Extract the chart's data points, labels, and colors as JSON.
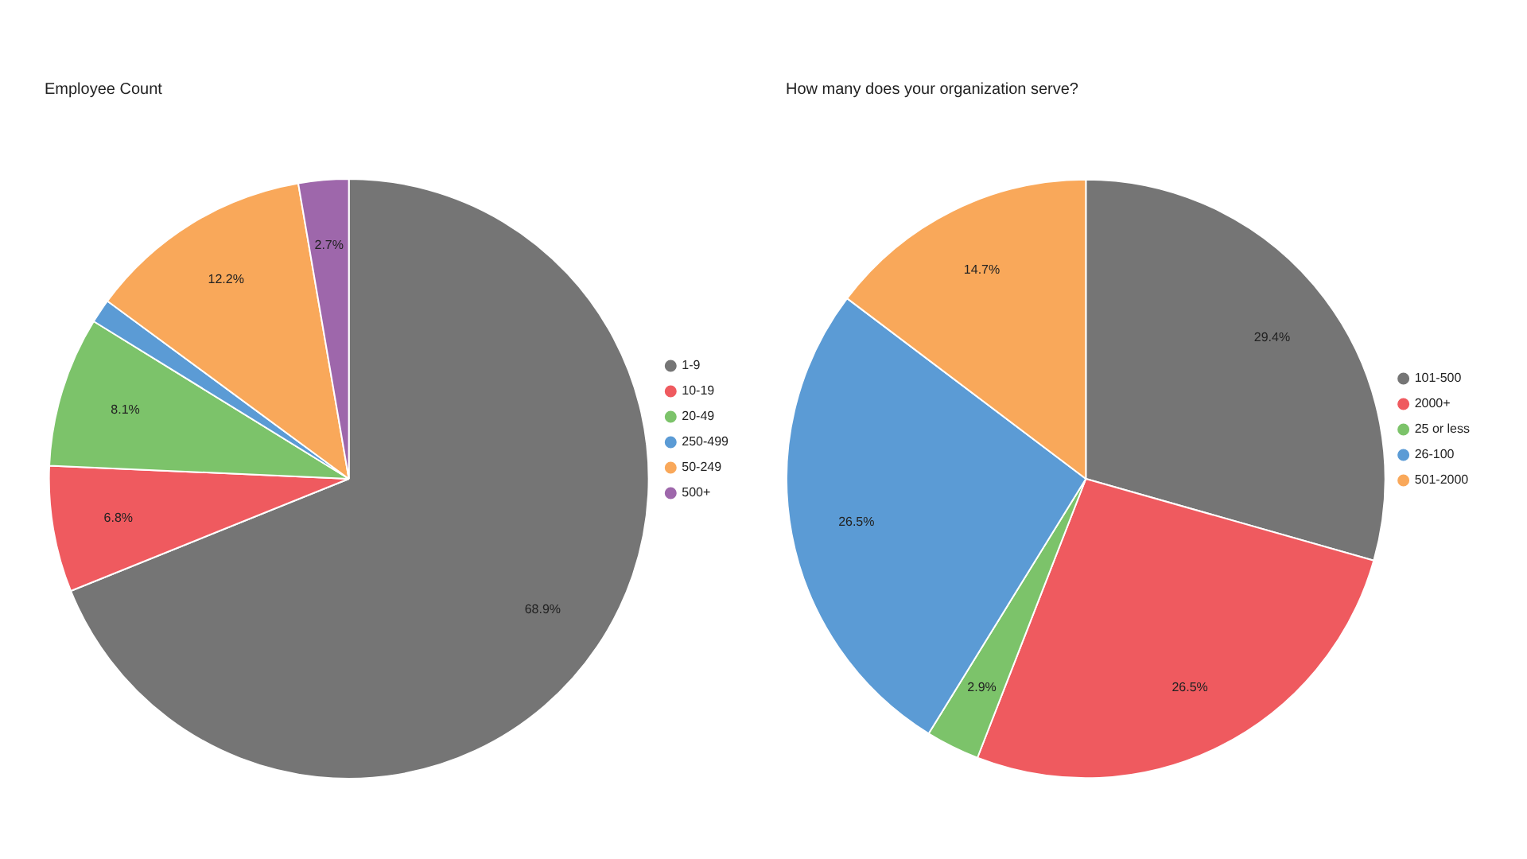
{
  "chart_data": [
    {
      "type": "pie",
      "title": "Employee Count",
      "categories": [
        "1-9",
        "10-19",
        "20-49",
        "250-499",
        "50-249",
        "500+"
      ],
      "values": [
        68.9,
        6.8,
        8.1,
        1.3,
        12.2,
        2.7
      ],
      "colors": [
        "#757575",
        "#ef5a5f",
        "#7cc36a",
        "#5b9bd5",
        "#f9a85a",
        "#9e67ab"
      ],
      "value_labels": [
        "68.9%",
        "6.8%",
        "8.1%",
        null,
        "12.2%",
        "2.7%"
      ],
      "legend": "right"
    },
    {
      "type": "pie",
      "title": "How many does your organization serve?",
      "categories": [
        "101-500",
        "2000+",
        "25 or less",
        "26-100",
        "501-2000"
      ],
      "values": [
        29.4,
        26.5,
        2.9,
        26.5,
        14.7
      ],
      "colors": [
        "#757575",
        "#ef5a5f",
        "#7cc36a",
        "#5b9bd5",
        "#f9a85a"
      ],
      "value_labels": [
        "29.4%",
        "26.5%",
        "2.9%",
        "26.5%",
        "14.7%"
      ],
      "legend": "right"
    }
  ]
}
